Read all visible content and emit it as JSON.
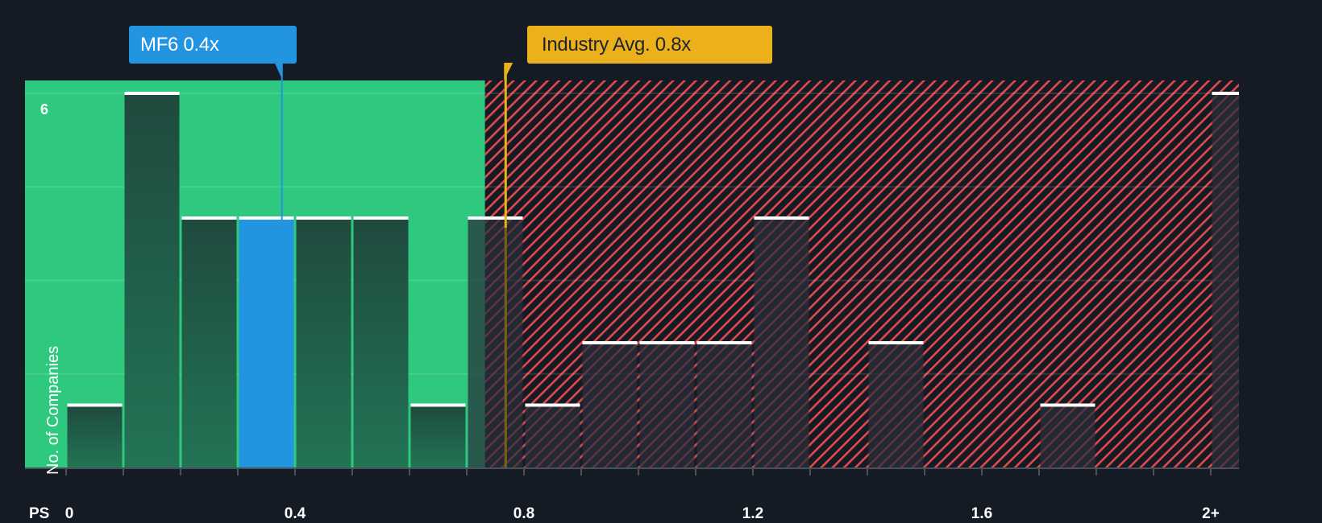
{
  "chart_data": {
    "type": "bar",
    "title": "",
    "xlabel": "PS",
    "ylabel": "No. of Companies",
    "x_tick_labels": [
      "0",
      "0.4",
      "0.8",
      "1.2",
      "1.6",
      "2+"
    ],
    "y_tick_labels": [
      "6"
    ],
    "ylim": [
      0,
      6.2
    ],
    "xlim": [
      -0.07,
      2.05
    ],
    "bin_width": 0.1,
    "categories": [
      "0.0-0.1",
      "0.1-0.2",
      "0.2-0.3",
      "0.3-0.4",
      "0.4-0.5",
      "0.5-0.6",
      "0.6-0.7",
      "0.7-0.8",
      "0.8-0.9",
      "0.9-1.0",
      "1.0-1.1",
      "1.1-1.2",
      "1.2-1.3",
      "1.3-1.4",
      "1.4-1.5",
      "1.5-1.6",
      "1.6-1.7",
      "1.7-1.8",
      "1.8-1.9",
      "1.9-2.0",
      "2+"
    ],
    "bin_starts": [
      0.0,
      0.1,
      0.2,
      0.3,
      0.4,
      0.5,
      0.6,
      0.7,
      0.8,
      0.9,
      1.0,
      1.1,
      1.2,
      1.3,
      1.4,
      1.5,
      1.6,
      1.7,
      1.8,
      1.9,
      2.0
    ],
    "values": [
      1,
      6,
      4,
      4,
      4,
      4,
      1,
      4,
      1,
      2,
      2,
      2,
      4,
      0,
      2,
      0,
      0,
      1,
      0,
      0,
      6
    ],
    "highlight_index": 3,
    "grid": true,
    "gridlines_y": [
      1.5,
      3,
      4.5,
      6
    ],
    "regions": [
      {
        "name": "undervalued",
        "from": -0.07,
        "to": 0.732,
        "color": "#2ec97e"
      },
      {
        "name": "overvalued",
        "from": 0.732,
        "to": 2.05,
        "color": "#e04a4a",
        "pattern": "diagonal-hatch"
      }
    ],
    "annotations": [
      {
        "label": "MF6 0.4x",
        "x": 0.377,
        "color": "#2394e0"
      },
      {
        "label": "Industry Avg. 0.8x",
        "x": 0.768,
        "color": "#ecb11a"
      }
    ]
  },
  "callouts": {
    "company": "MF6 0.4x",
    "industry": "Industry Avg. 0.8x"
  },
  "axis": {
    "x_title": "PS",
    "y_title": "No. of Companies",
    "y_top_tick": "6",
    "x_ticks": [
      "0",
      "0.4",
      "0.8",
      "1.2",
      "1.6",
      "2+"
    ]
  },
  "colors": {
    "background": "#151b24",
    "green_region": "#2ec97e",
    "bar_dark_green": "#1f4a3e",
    "highlight_bar": "#2394e0",
    "hatch_red": "#e04a4a",
    "industry_line": "#ecb11a",
    "bar_cap": "#ffffff"
  }
}
